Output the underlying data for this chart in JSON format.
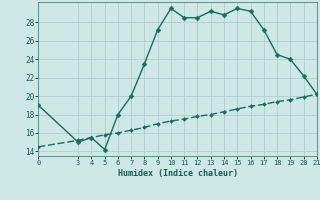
{
  "xlabel": "Humidex (Indice chaleur)",
  "bg_color": "#cde8e5",
  "grid_color": "#b0cfcc",
  "line_color": "#1a6b62",
  "xlim": [
    0,
    21
  ],
  "ylim": [
    13.5,
    30.2
  ],
  "yticks": [
    14,
    16,
    18,
    20,
    22,
    24,
    26,
    28
  ],
  "xticks": [
    0,
    3,
    4,
    5,
    6,
    7,
    8,
    9,
    10,
    11,
    12,
    13,
    14,
    15,
    16,
    17,
    18,
    19,
    20,
    21
  ],
  "curve1_x": [
    0,
    3,
    4,
    5,
    6,
    7,
    8,
    9,
    10,
    11,
    12,
    13,
    14,
    15,
    16,
    17,
    18,
    19,
    20,
    21
  ],
  "curve1_y": [
    19.0,
    15.0,
    15.5,
    14.2,
    18.0,
    20.0,
    23.5,
    27.2,
    29.5,
    28.5,
    28.5,
    29.2,
    28.8,
    29.5,
    29.2,
    27.2,
    24.5,
    24.0,
    22.2,
    20.2
  ],
  "curve2_x": [
    0,
    3,
    4,
    5,
    6,
    7,
    8,
    9,
    10,
    11,
    12,
    13,
    14,
    15,
    16,
    17,
    18,
    19,
    20,
    21
  ],
  "curve2_y": [
    14.5,
    15.2,
    15.5,
    15.8,
    16.0,
    16.3,
    16.6,
    17.0,
    17.3,
    17.5,
    17.8,
    18.0,
    18.3,
    18.6,
    18.9,
    19.1,
    19.4,
    19.6,
    19.9,
    20.2
  ],
  "marker_size": 2.5,
  "line_width": 1.0
}
